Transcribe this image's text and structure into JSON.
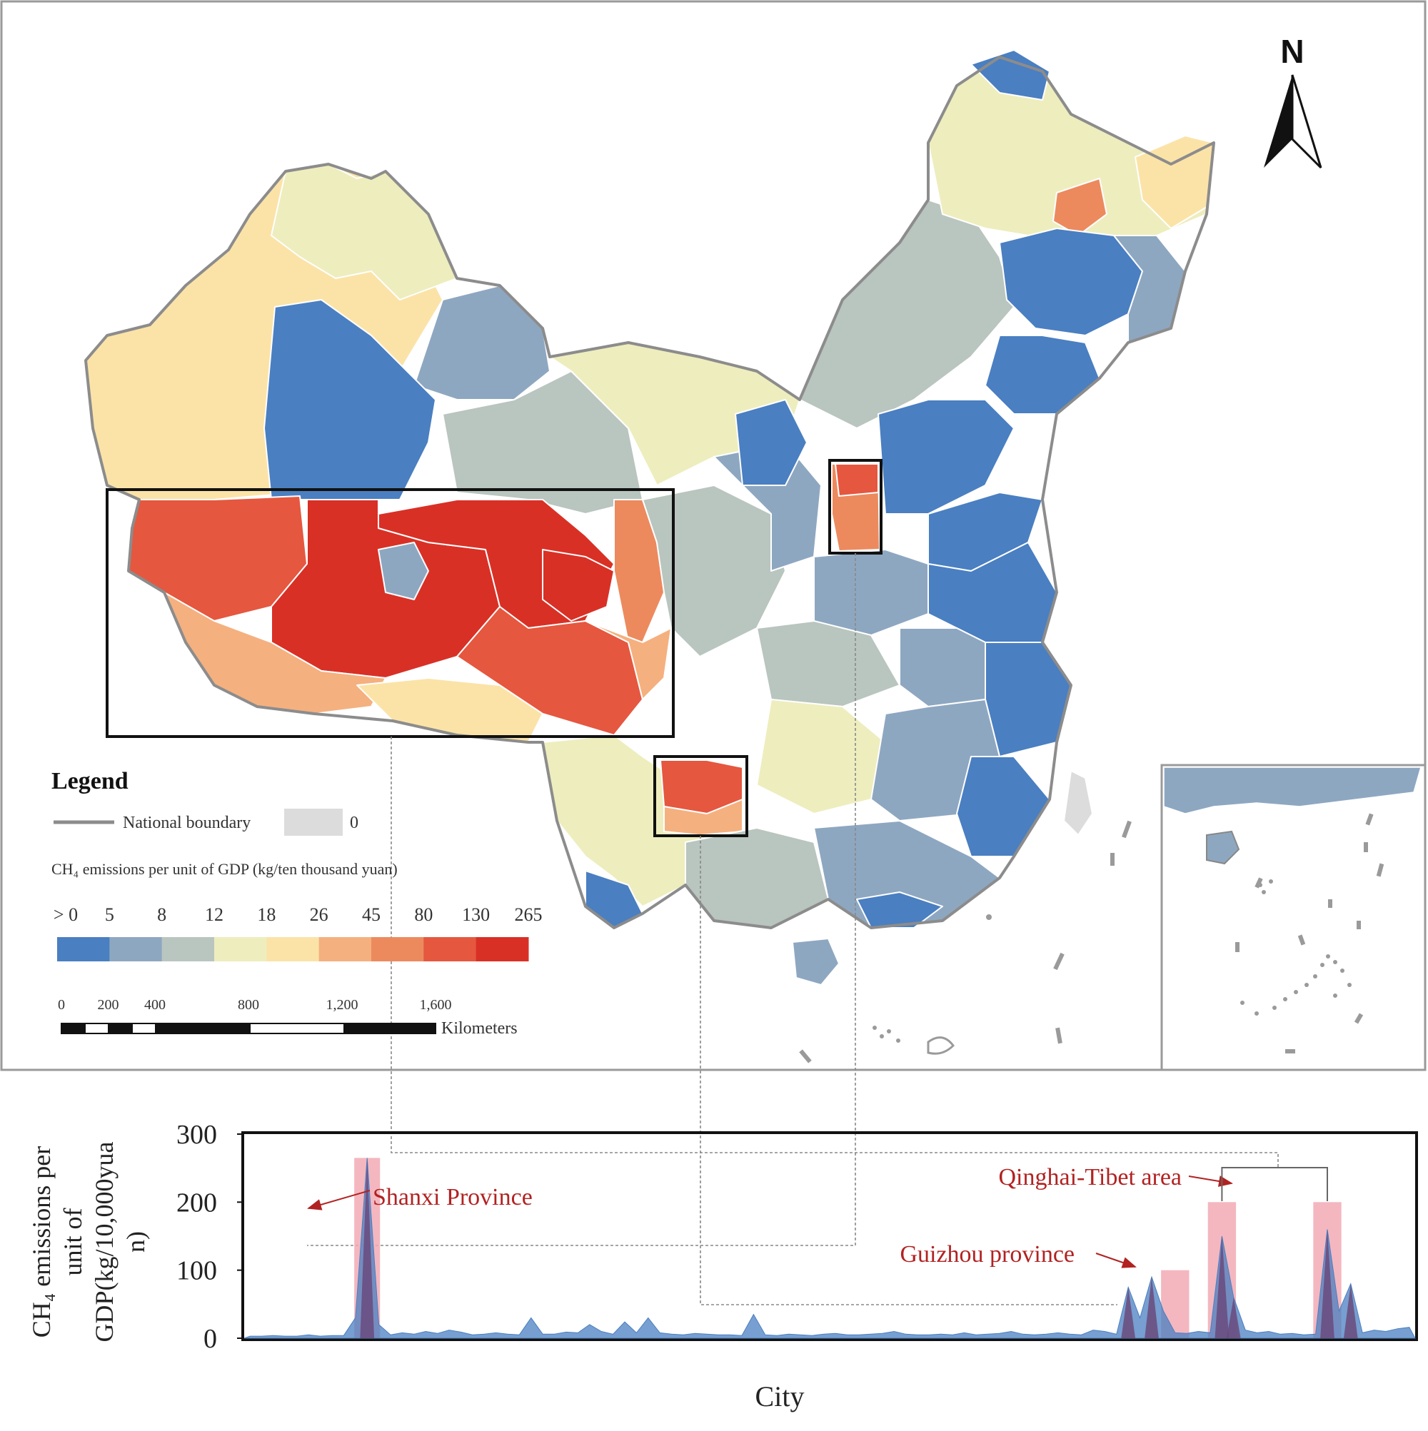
{
  "map": {
    "north_label": "N",
    "legend": {
      "title": "Legend",
      "boundary_label": "National boundary",
      "zero_label": "0",
      "scale_title": "CH₄ emissions per unit of GDP (kg/ten thousand yuan)",
      "class_breaks": [
        "> 0",
        "5",
        "8",
        "12",
        "18",
        "26",
        "45",
        "80",
        "130",
        "265"
      ],
      "class_colors": [
        "#4a7fc1",
        "#8ea7c1",
        "#b9c5bf",
        "#eeedbe",
        "#fbe3a8",
        "#f5b07f",
        "#ec8a5e",
        "#e5573f",
        "#d93026"
      ],
      "zero_color": "#dcdcdc",
      "boundary_color": "#8c8c8c"
    },
    "scale_bar": {
      "ticks": [
        "0",
        "200",
        "400",
        "800",
        "1,200",
        "1,600"
      ],
      "unit": "Kilometers"
    }
  },
  "chart_data": {
    "type": "area",
    "title": "",
    "xlabel": "City",
    "ylabel": "CH₄ emissions per unit of GDP(kg/10,000yuan)",
    "ylabel_lines": [
      "CH₄ emissions per",
      "unit of",
      "GDP(kg/10,000yua",
      "n)"
    ],
    "ylim": [
      0,
      300
    ],
    "yticks": [
      0,
      100,
      200,
      300
    ],
    "num_cities": 100,
    "series": [
      {
        "name": "CH₄ emissions per unit of GDP",
        "values": [
          3,
          3,
          4,
          3,
          3,
          5,
          3,
          4,
          4,
          30,
          265,
          20,
          5,
          8,
          6,
          10,
          7,
          12,
          9,
          5,
          6,
          8,
          6,
          5,
          30,
          6,
          6,
          9,
          8,
          20,
          10,
          6,
          24,
          8,
          30,
          8,
          6,
          5,
          7,
          6,
          5,
          5,
          4,
          35,
          5,
          4,
          6,
          5,
          4,
          6,
          7,
          5,
          5,
          6,
          7,
          10,
          6,
          5,
          5,
          6,
          5,
          8,
          5,
          6,
          7,
          10,
          6,
          5,
          6,
          8,
          6,
          5,
          12,
          10,
          6,
          75,
          30,
          90,
          40,
          8,
          7,
          10,
          8,
          150,
          60,
          12,
          8,
          10,
          6,
          7,
          5,
          6,
          160,
          40,
          80,
          8,
          12,
          10,
          14,
          16
        ]
      }
    ],
    "highlights": [
      {
        "label": "Shanxi Province",
        "value": 265
      },
      {
        "label": "Guizhou province",
        "value": 100
      },
      {
        "label": "Qinghai-Tibet area",
        "value": 200
      },
      {
        "label": "Qinghai-Tibet area",
        "value": 200
      }
    ],
    "annotation_color": "#b22222",
    "highlight_color": "#f2aab4",
    "series_color": "#4a7fc1"
  }
}
